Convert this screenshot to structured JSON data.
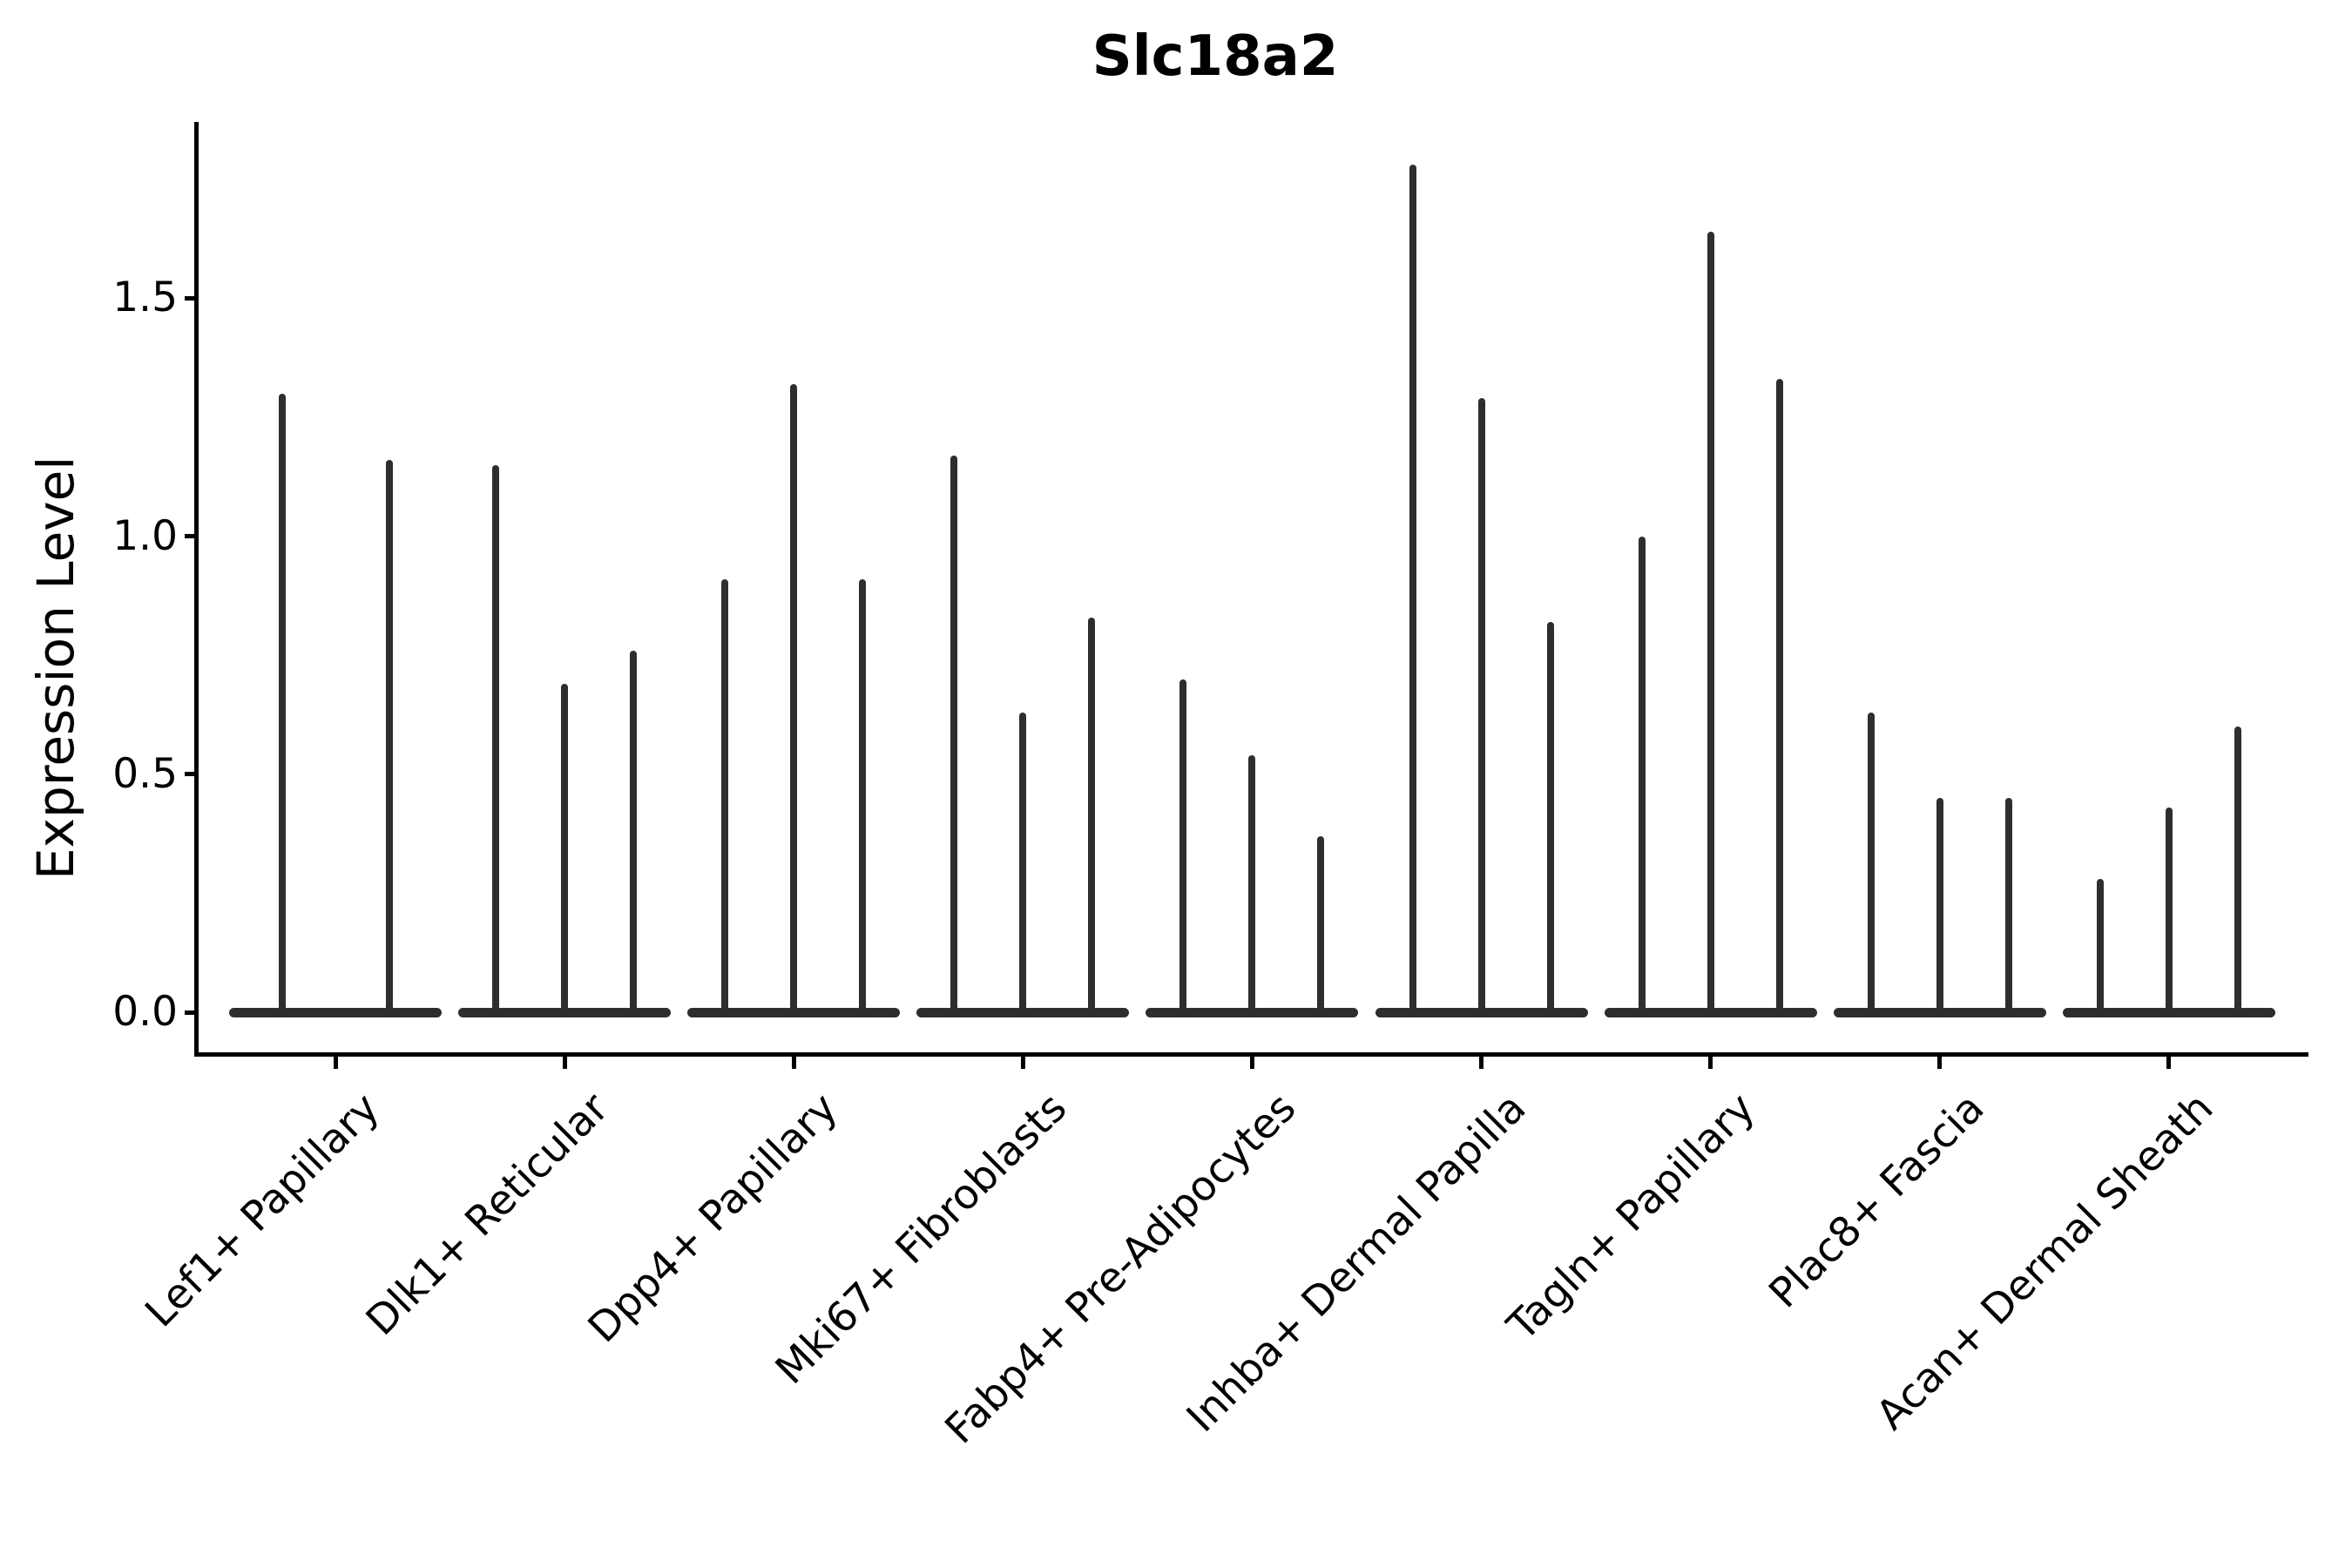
{
  "figure": {
    "title": "Slc18a2"
  },
  "chart_data": {
    "type": "violin",
    "title": "Slc18a2",
    "xlabel": "",
    "ylabel": "Expression Level",
    "ytick_labels": [
      "0.0",
      "0.5",
      "1.0",
      "1.5"
    ],
    "ytick_values": [
      0.0,
      0.5,
      1.0,
      1.5
    ],
    "ylim": [
      -0.09,
      1.87
    ],
    "grid": false,
    "legend": "none",
    "categories": [
      "Lef1+ Papillary",
      "Dlk1+ Reticular",
      "Dpp4+ Papillary",
      "Mki67+ Fibroblasts",
      "Fabp4+ Pre-Adipocytes",
      "Inhba+ Dermal Papilla",
      "Tagln+ Papillary",
      "Plac8+ Fascia",
      "Acan+ Dermal Sheath"
    ],
    "groups": [
      {
        "category": "Lef1+ Papillary",
        "violin_max_values": [
          1.3,
          1.16
        ]
      },
      {
        "category": "Dlk1+ Reticular",
        "violin_max_values": [
          1.15,
          0.69,
          0.76
        ]
      },
      {
        "category": "Dpp4+ Papillary",
        "violin_max_values": [
          0.91,
          1.32,
          0.91
        ]
      },
      {
        "category": "Mki67+ Fibroblasts",
        "violin_max_values": [
          1.17,
          0.63,
          0.83
        ]
      },
      {
        "category": "Fabp4+ Pre-Adipocytes",
        "violin_max_values": [
          0.7,
          0.54,
          0.37
        ]
      },
      {
        "category": "Inhba+ Dermal Papilla",
        "violin_max_values": [
          1.78,
          1.29,
          0.82
        ]
      },
      {
        "category": "Tagln+ Papillary",
        "violin_max_values": [
          1.0,
          1.64,
          1.33
        ]
      },
      {
        "category": "Plac8+ Fascia",
        "violin_max_values": [
          0.63,
          0.45,
          0.45
        ]
      },
      {
        "category": "Acan+ Dermal Sheath",
        "violin_max_values": [
          0.28,
          0.43,
          0.6
        ]
      }
    ],
    "colors": {
      "violin": "#2e2e2e",
      "axis": "#000000",
      "text": "#000000",
      "background": "#ffffff"
    }
  }
}
